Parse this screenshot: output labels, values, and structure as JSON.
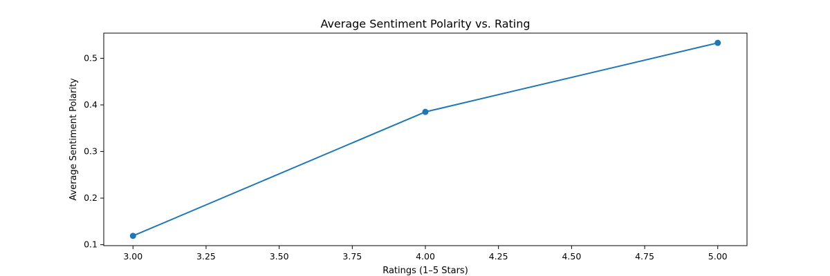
{
  "chart_data": {
    "type": "line",
    "title": "Average Sentiment Polarity vs. Rating",
    "xlabel": "Ratings (1–5 Stars)",
    "ylabel": "Average Sentiment Polarity",
    "x": [
      3.0,
      4.0,
      5.0
    ],
    "series": [
      {
        "values": [
          0.119,
          0.385,
          0.533
        ],
        "color": "#1f77b4",
        "marker": "circle"
      }
    ],
    "xlim": [
      2.9,
      5.1
    ],
    "ylim": [
      0.098,
      0.554
    ],
    "x_ticks": [
      "3.00",
      "3.25",
      "3.50",
      "3.75",
      "4.00",
      "4.25",
      "4.50",
      "4.75",
      "5.00"
    ],
    "y_ticks": [
      "0.1",
      "0.2",
      "0.3",
      "0.4",
      "0.5"
    ],
    "grid": false,
    "legend": "none"
  }
}
